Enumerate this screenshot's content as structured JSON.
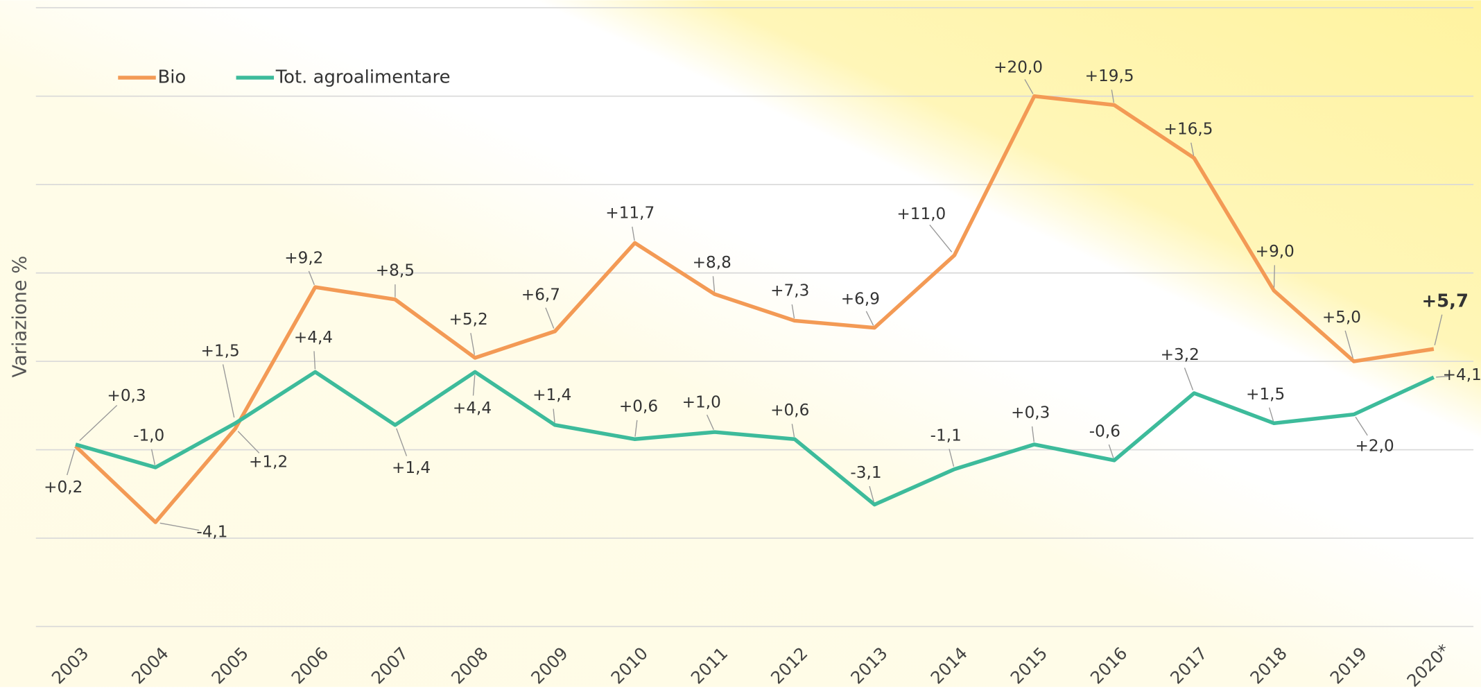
{
  "chart_data": {
    "type": "line",
    "y_label": "Variazione %",
    "categories": [
      "2003",
      "2004",
      "2005",
      "2006",
      "2007",
      "2008",
      "2009",
      "2010",
      "2011",
      "2012",
      "2013",
      "2014",
      "2015",
      "2016",
      "2017",
      "2018",
      "2019",
      "2020*"
    ],
    "series": [
      {
        "name": "Bio",
        "color": "#f39a55",
        "values": [
          0.2,
          -4.1,
          1.2,
          9.2,
          8.5,
          5.2,
          6.7,
          11.7,
          8.8,
          7.3,
          6.9,
          11.0,
          20.0,
          19.5,
          16.5,
          9.0,
          5.0,
          5.7
        ],
        "value_labels": [
          "+0,2",
          "-4,1",
          "+1,2",
          "+9,2",
          "+8,5",
          "+5,2",
          "+6,7",
          "+11,7",
          "+8,8",
          "+7,3",
          "+6,9",
          "+11,0",
          "+20,0",
          "+19,5",
          "+16,5",
          "+9,0",
          "+5,0",
          "+5,7"
        ]
      },
      {
        "name": "Tot. agroalimentare",
        "color": "#3dbb9b",
        "values": [
          0.3,
          -1.0,
          1.5,
          4.4,
          1.4,
          4.4,
          1.4,
          0.6,
          1.0,
          0.6,
          -3.1,
          -1.1,
          0.3,
          -0.6,
          3.2,
          1.5,
          2.0,
          4.1
        ],
        "value_labels": [
          "+0,3",
          "-1,0",
          "+1,5",
          "+4,4",
          "+1,4",
          "+4,4",
          "+1,4",
          "+0,6",
          "+1,0",
          "+0,6",
          "-3,1",
          "-1,1",
          "+0,3",
          "-0,6",
          "+3,2",
          "+1,5",
          "+2,0",
          "+4,1"
        ]
      }
    ],
    "ylim": [
      -10,
      25
    ],
    "yticks": [
      -10,
      -5,
      0,
      5,
      10,
      15,
      20,
      25
    ],
    "grid": true,
    "legend": "top-left"
  }
}
